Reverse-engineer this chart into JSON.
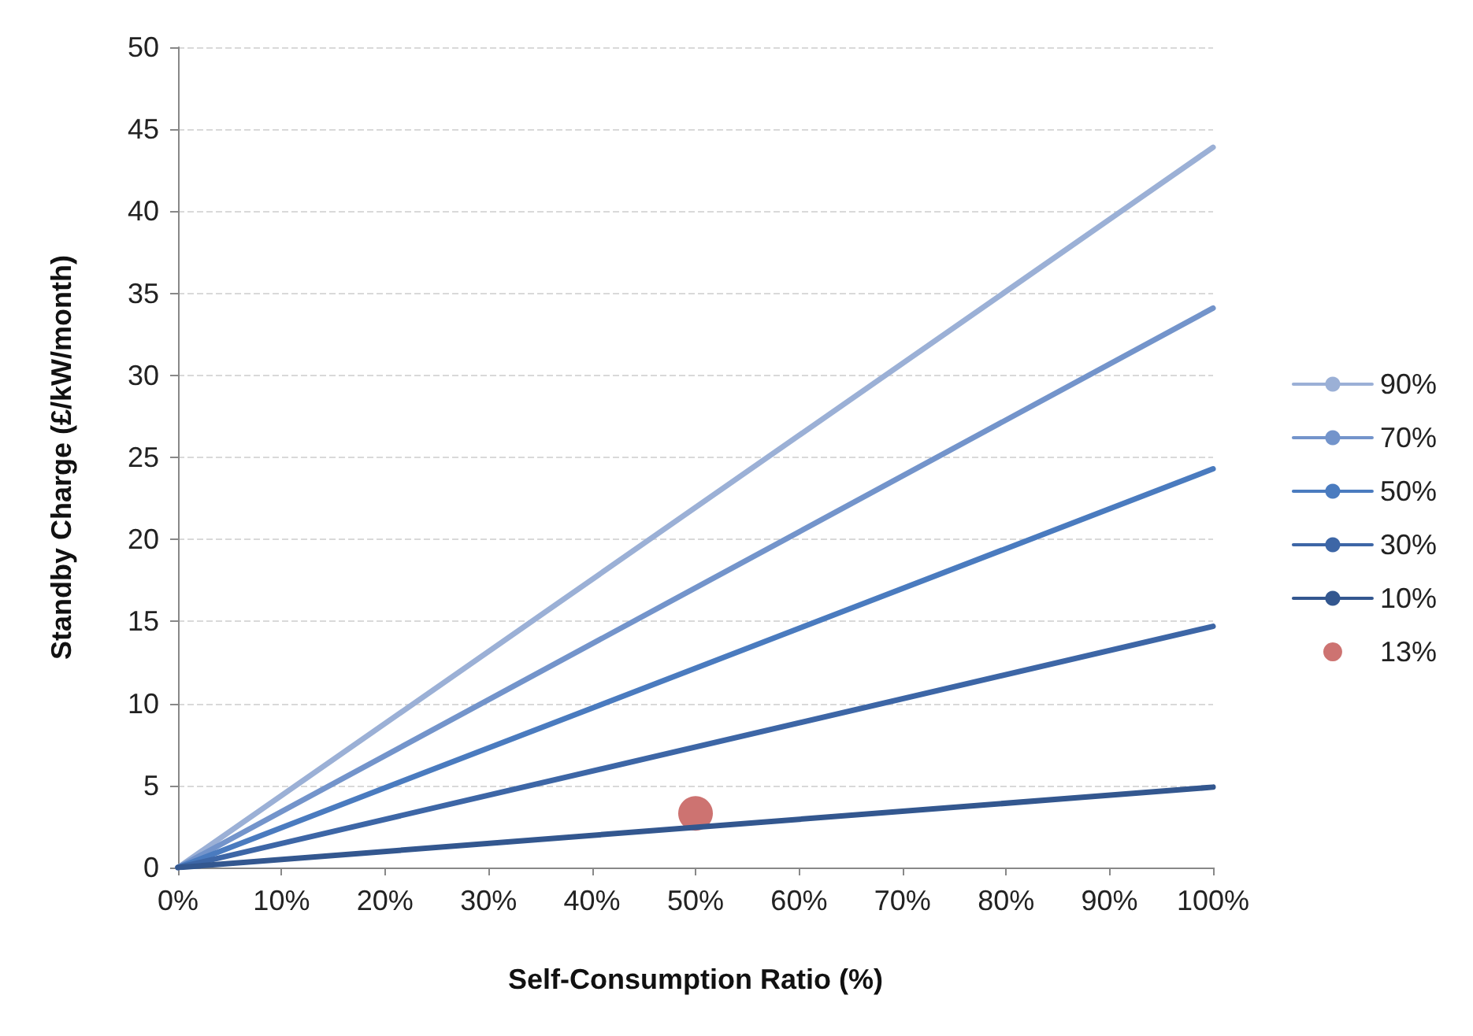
{
  "chart_data": {
    "type": "line",
    "xlabel": "Self-Consumption Ratio (%)",
    "ylabel": "Standby Charge (£/kW/month)",
    "series": [
      {
        "name": "90%",
        "color": "#9bb0d6",
        "x": [
          0,
          100
        ],
        "values": [
          0,
          43.9
        ]
      },
      {
        "name": "70%",
        "color": "#7394cb",
        "x": [
          0,
          100
        ],
        "values": [
          0,
          34.1
        ]
      },
      {
        "name": "50%",
        "color": "#4a7bbf",
        "x": [
          0,
          100
        ],
        "values": [
          0,
          24.3
        ]
      },
      {
        "name": "30%",
        "color": "#3d66a6",
        "x": [
          0,
          100
        ],
        "values": [
          0,
          14.7
        ]
      },
      {
        "name": "10%",
        "color": "#33578f",
        "x": [
          0,
          100
        ],
        "values": [
          0,
          4.9
        ]
      },
      {
        "name": "13%",
        "type": "scatter",
        "marker": "circle",
        "color": "#c0504d",
        "x": [
          50
        ],
        "values": [
          3.3
        ]
      }
    ],
    "xlim": [
      0,
      100
    ],
    "xticks": [
      {
        "value": 0,
        "label": "0%"
      },
      {
        "value": 10,
        "label": "10%"
      },
      {
        "value": 20,
        "label": "20%"
      },
      {
        "value": 30,
        "label": "30%"
      },
      {
        "value": 40,
        "label": "40%"
      },
      {
        "value": 50,
        "label": "50%"
      },
      {
        "value": 60,
        "label": "60%"
      },
      {
        "value": 70,
        "label": "70%"
      },
      {
        "value": 80,
        "label": "80%"
      },
      {
        "value": 90,
        "label": "90%"
      },
      {
        "value": 100,
        "label": "100%"
      }
    ],
    "ylim": [
      0,
      50
    ],
    "yticks": [
      0,
      5,
      10,
      15,
      20,
      25,
      30,
      35,
      40,
      45,
      50
    ],
    "grid": "y",
    "legend": "right",
    "marker": "none",
    "line_style": "solid"
  }
}
